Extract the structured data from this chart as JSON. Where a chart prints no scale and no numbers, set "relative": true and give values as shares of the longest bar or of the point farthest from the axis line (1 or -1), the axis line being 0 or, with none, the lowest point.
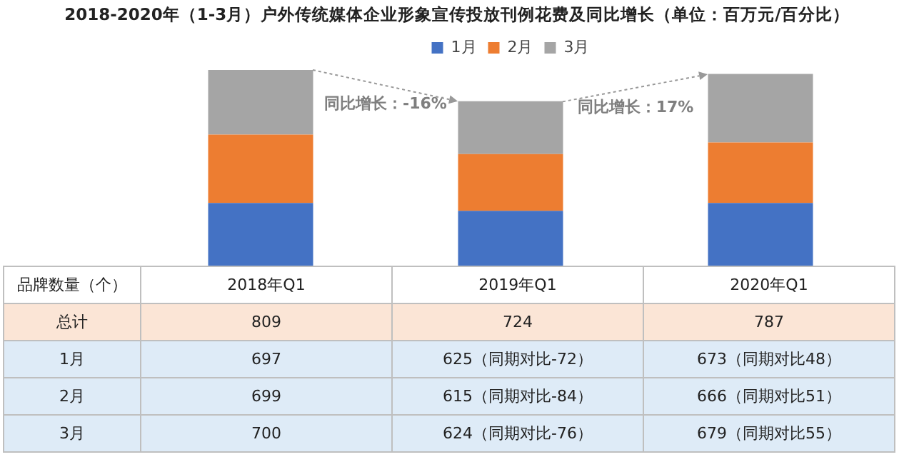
{
  "chart_data": [
    {
      "type": "bar",
      "title": "2018-2020年（1-3月）户外传统媒体企业形象宣传投放刊例花费及同比增长（单位：百万元/百分比）",
      "relative": true,
      "stacked": true,
      "categories": [
        null,
        null,
        null
      ],
      "series": [
        {
          "name": "1月",
          "color": "#4472c4",
          "values": [
            0.32,
            0.28,
            0.32
          ]
        },
        {
          "name": "2月",
          "color": "#ed7d31",
          "values": [
            0.35,
            0.29,
            0.31
          ]
        },
        {
          "name": "3月",
          "color": "#a5a5a5",
          "values": [
            0.33,
            0.27,
            0.35
          ]
        }
      ],
      "legend": "top",
      "annotations": [
        "同比增长：-16%",
        "同比增长：17%"
      ]
    },
    {
      "type": "other",
      "title": "品牌数量（个）",
      "categories": [
        "总计",
        "1月",
        "2月",
        "3月"
      ],
      "series": [
        {
          "name": "2018年Q1",
          "colors": [
            "#fbe5d6",
            "#deebf7",
            "#deebf7",
            "#deebf7"
          ],
          "values": [
            809,
            697,
            699,
            700
          ],
          "value_labels": [
            "809",
            "697",
            "699",
            "700"
          ]
        },
        {
          "name": "2019年Q1",
          "colors": [
            "#fbe5d6",
            "#deebf7",
            "#deebf7",
            "#deebf7"
          ],
          "values": [
            724,
            625,
            615,
            624
          ],
          "value_labels": [
            "724",
            "625（同期对比-72）",
            "615（同期对比-84）",
            "624（同期对比-76）"
          ]
        },
        {
          "name": "2020年Q1",
          "colors": [
            "#fbe5d6",
            "#deebf7",
            "#deebf7",
            "#deebf7"
          ],
          "values": [
            787,
            673,
            666,
            679
          ],
          "value_labels": [
            "787",
            "673（同期对比48）",
            "666（同期对比51）",
            "679（同期对比55）"
          ]
        }
      ]
    }
  ]
}
